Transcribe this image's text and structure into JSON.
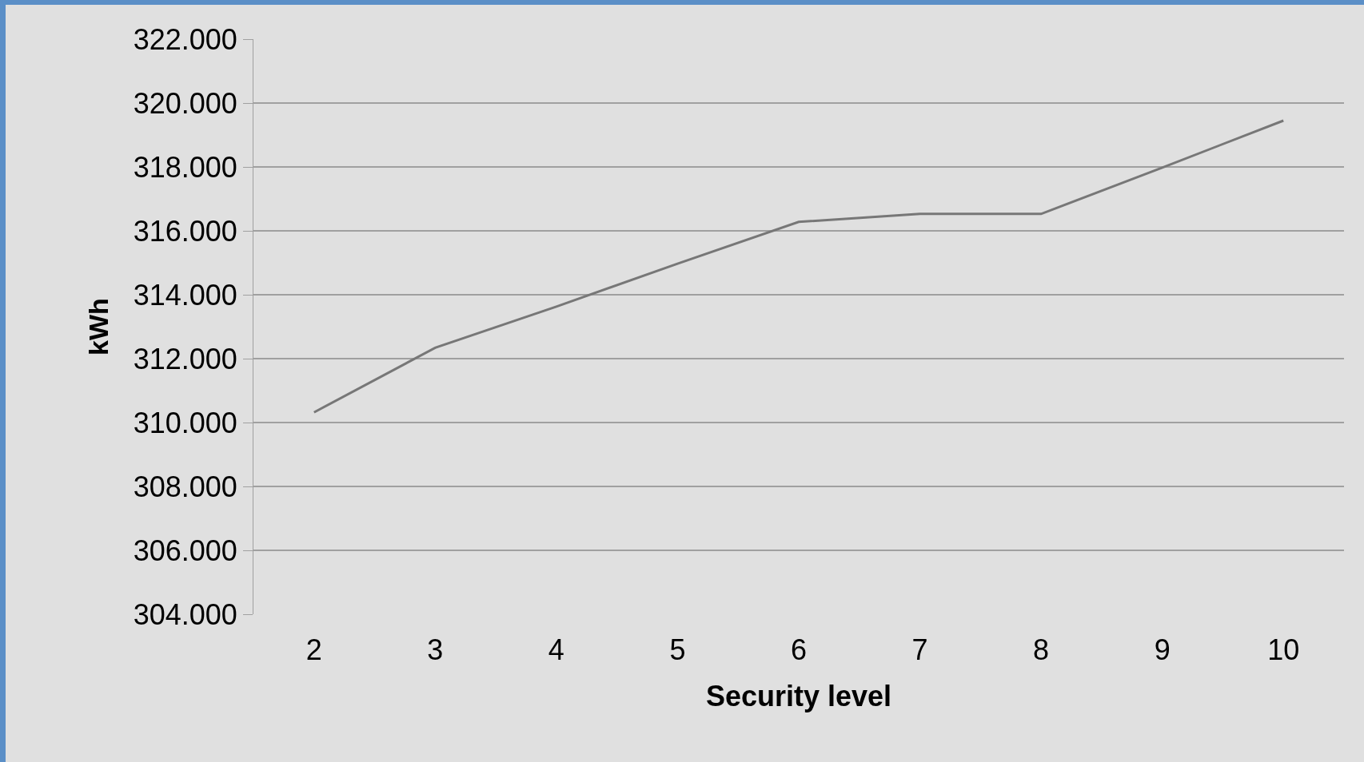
{
  "chart_data": {
    "type": "line",
    "xlabel": "Security level",
    "ylabel": "kWh",
    "categories": [
      "2",
      "3",
      "4",
      "5",
      "6",
      "7",
      "8",
      "9",
      "10"
    ],
    "series": [
      {
        "color": "#777777",
        "values": [
          310.32,
          312.34,
          313.63,
          314.97,
          316.28,
          316.53,
          316.53,
          317.98,
          319.45
        ]
      }
    ],
    "ylim": [
      304,
      322
    ],
    "yticks": [
      {
        "value": 304,
        "label": "304.000"
      },
      {
        "value": 306,
        "label": "306.000"
      },
      {
        "value": 308,
        "label": "308.000"
      },
      {
        "value": 310,
        "label": "310.000"
      },
      {
        "value": 312,
        "label": "312.000"
      },
      {
        "value": 314,
        "label": "314.000"
      },
      {
        "value": 316,
        "label": "316.000"
      },
      {
        "value": 318,
        "label": "318.000"
      },
      {
        "value": 320,
        "label": "320.000"
      },
      {
        "value": 322,
        "label": "322.000"
      }
    ],
    "grid": "y",
    "legend": false,
    "marker": "none",
    "line_style": "solid"
  }
}
